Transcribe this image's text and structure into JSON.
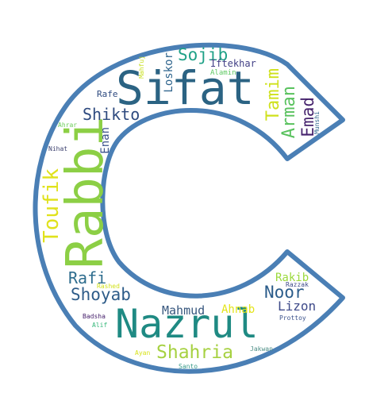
{
  "colors": {
    "outline": "#4a7fb5",
    "background": "#ffffff"
  },
  "words": {
    "sifat": "Sifat",
    "rabbi": "Rabbi",
    "nazrul": "Nazrul",
    "shahria": "Shahria",
    "toufik": "Toufik",
    "shoyab": "Shoyab",
    "sojib": "Sojib",
    "shikto": "Shikto",
    "tamim": "Tamim",
    "arman": "Arman",
    "emad": "Emad",
    "noor": "Noor",
    "rafi": "Rafi",
    "mahmud": "Mahmud",
    "ahnab": "Ahnab",
    "lizon": "Lizon",
    "rakib": "Rakib",
    "loskor": "Loskor",
    "enan": "Enan",
    "iftekhar": "Iftekhar",
    "alamin": "Alamin",
    "rafe": "Rafe",
    "mahfuj": "Mahfuj",
    "munshi": "Munshi",
    "ahrar": "Ahrar",
    "nihat": "Nihat",
    "rashed": "Rashed",
    "razzak": "Razzak",
    "badsha": "Badsha",
    "alif": "Alif",
    "prottoy": "Prottoy",
    "ayan": "Ayan",
    "santo": "Santo",
    "jakwan": "Jakwan"
  }
}
